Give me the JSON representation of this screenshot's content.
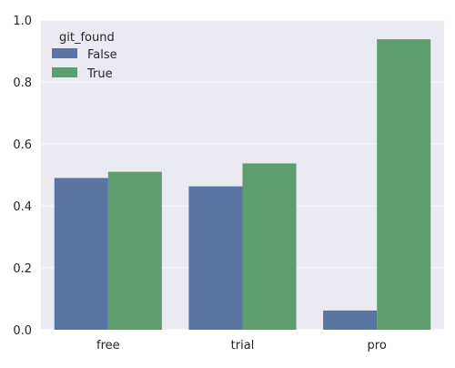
{
  "chart_data": {
    "type": "bar",
    "title": "",
    "xlabel": "",
    "ylabel": "",
    "categories": [
      "free",
      "trial",
      "pro"
    ],
    "series": [
      {
        "name": "False",
        "values": [
          0.49,
          0.463,
          0.062
        ],
        "color": "#5875A4"
      },
      {
        "name": "True",
        "values": [
          0.51,
          0.537,
          0.938
        ],
        "color": "#5E9E6E"
      }
    ],
    "ylim": [
      0,
      1
    ],
    "yticks": [
      "0.0",
      "0.2",
      "0.4",
      "0.6",
      "0.8",
      "1.0"
    ],
    "grid": true,
    "background": "#EAEAF2",
    "legend": {
      "title": "git_found",
      "position": "top-left"
    }
  }
}
